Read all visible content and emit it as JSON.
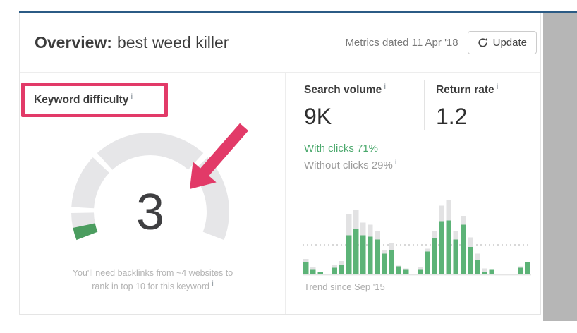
{
  "header": {
    "title_label": "Overview:",
    "title_value": "best weed killer",
    "metrics_dated": "Metrics dated 11 Apr '18",
    "update_label": "Update"
  },
  "ui": {
    "info_char": "i"
  },
  "left_panel": {
    "title": "Keyword difficulty",
    "value": "3",
    "note_line1": "You'll need backlinks from ~4 websites to",
    "note_line2": "rank in top 10 for this keyword"
  },
  "right_panel": {
    "search_volume": {
      "label": "Search volume",
      "value": "9K"
    },
    "return_rate": {
      "label": "Return rate",
      "value": "1.2"
    },
    "with_clicks": "With clicks 71%",
    "without_clicks": "Without clicks 29%",
    "trend_caption": "Trend since Sep '15"
  },
  "colors": {
    "accent_bar": "#2b5b85",
    "annotation_pink": "#e23a68",
    "gauge_track": "#e6e6e8",
    "gauge_green": "#4b9d5f",
    "bar_green": "#5cb377",
    "bar_gray": "#e2e2e3",
    "clicks_green": "#4aa86c",
    "text_dark": "#3c3c3c",
    "text_gray": "#8a8a8a",
    "text_light": "#b3b3b3",
    "scrollbar": "#b6b6b6",
    "border": "#e5e5e5",
    "dotted_line": "#cccccc"
  },
  "chart_data": [
    {
      "type": "gauge",
      "metric": "Keyword difficulty",
      "value": 3,
      "scale": [
        0,
        100
      ],
      "segment_bounds": [
        0,
        10,
        30,
        70,
        100
      ],
      "start_deg": 159,
      "sweep_deg": 222,
      "note": "You'll need backlinks from ~4 websites to rank in top 10 for this keyword"
    },
    {
      "type": "bar",
      "stacked": true,
      "title": "Trend since Sep '15",
      "x_range": [
        "Sep '15",
        "Apr '18"
      ],
      "x_unit": "month",
      "ylim": [
        0,
        100
      ],
      "y_unit": "% of peak monthly search volume",
      "avg_line_pct": 40,
      "series": [
        {
          "name": "With clicks",
          "color_key": "bar_green",
          "values": [
            17,
            7,
            4,
            1,
            9,
            13,
            53,
            61,
            53,
            51,
            47,
            28,
            33,
            11,
            7,
            1,
            7,
            31,
            49,
            72,
            73,
            47,
            67,
            37,
            19,
            4,
            7,
            1,
            1,
            1,
            9,
            17
          ]
        },
        {
          "name": "Total volume",
          "color_key": "bar_gray",
          "values": [
            21,
            10,
            4,
            1,
            13,
            18,
            81,
            87,
            70,
            67,
            58,
            33,
            43,
            12,
            8,
            1,
            10,
            35,
            59,
            93,
            100,
            59,
            79,
            50,
            28,
            8,
            7,
            1,
            1,
            1,
            11,
            17
          ]
        }
      ],
      "legend": "off",
      "grid": "off"
    }
  ]
}
